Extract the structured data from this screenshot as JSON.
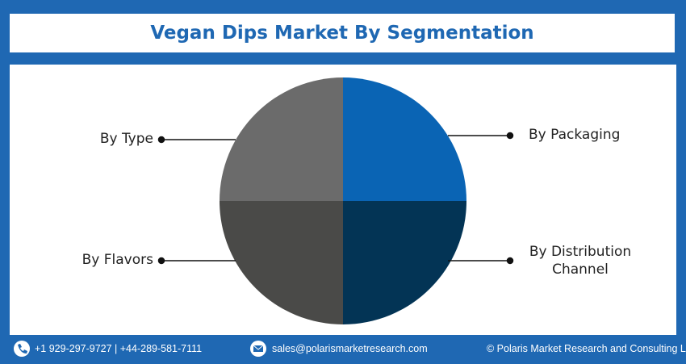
{
  "header": {
    "title": "Vegan Dips Market By Segmentation"
  },
  "segments": [
    {
      "label": "By Type"
    },
    {
      "label": "By Packaging"
    },
    {
      "label": "By Flavors"
    },
    {
      "label": "By Distribution Channel"
    }
  ],
  "footer": {
    "phone": "+1 929-297-9727 | +44-289-581-7111",
    "email": "sales@polarismarketresearch.com",
    "copyright": "© Polaris Market Research and Consulting LLP"
  }
}
